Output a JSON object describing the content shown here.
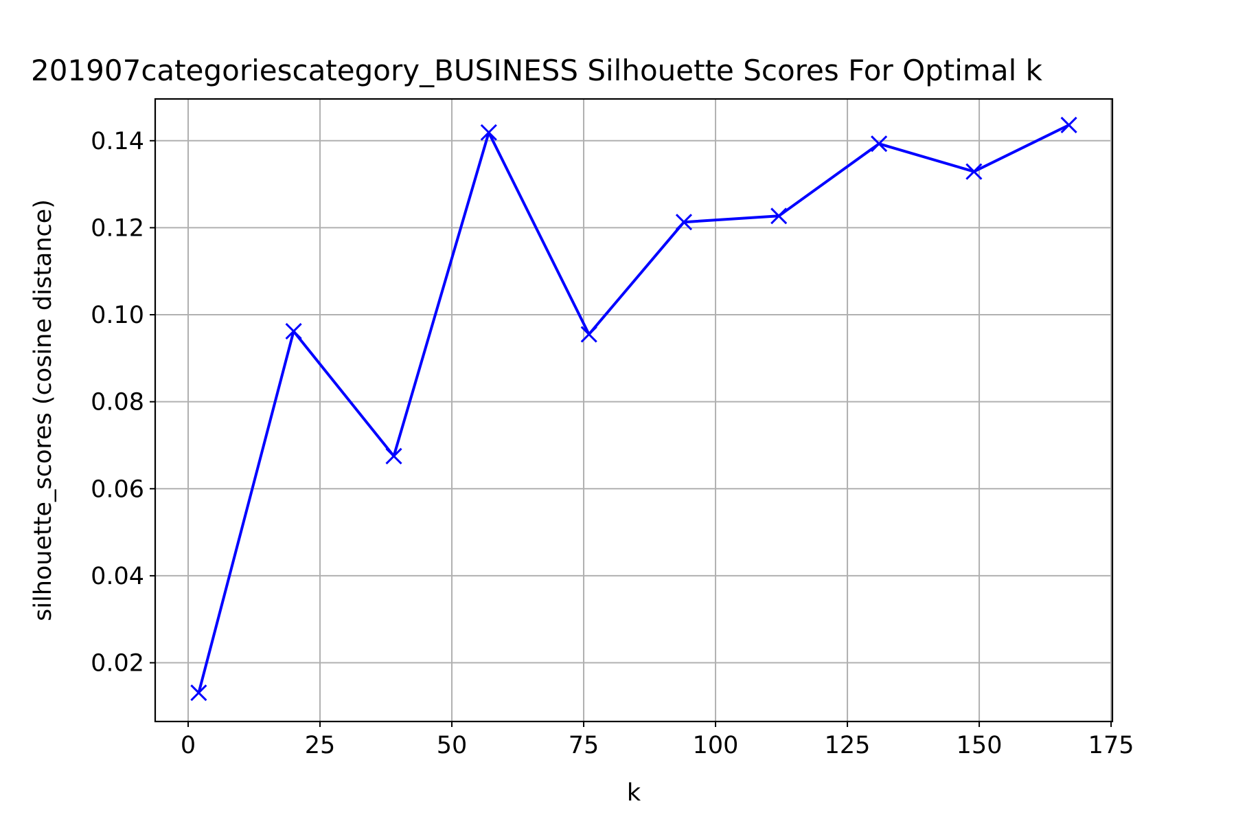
{
  "chart_data": {
    "type": "line",
    "title": "201907categoriescategory_BUSINESS Silhouette Scores For Optimal k",
    "xlabel": "k",
    "ylabel": "silhouette_scores (cosine distance)",
    "xlim": [
      -6.25,
      175.25
    ],
    "ylim": [
      0.0065,
      0.1496
    ],
    "xticks": [
      0,
      25,
      50,
      75,
      100,
      125,
      150,
      175
    ],
    "yticks": [
      0.02,
      0.04,
      0.06,
      0.08,
      0.1,
      0.12,
      0.14
    ],
    "xtick_labels": [
      "0",
      "25",
      "50",
      "75",
      "100",
      "125",
      "150",
      "175"
    ],
    "ytick_labels": [
      "0.02",
      "0.04",
      "0.06",
      "0.08",
      "0.10",
      "0.12",
      "0.14"
    ],
    "grid": true,
    "series": [
      {
        "color": "#0000ff",
        "marker": "x",
        "x": [
          2,
          20,
          39,
          57,
          76,
          94,
          112,
          131,
          149,
          167
        ],
        "y": [
          0.0131,
          0.0962,
          0.0675,
          0.1419,
          0.0955,
          0.1213,
          0.1227,
          0.1393,
          0.1329,
          0.1436
        ]
      }
    ]
  }
}
